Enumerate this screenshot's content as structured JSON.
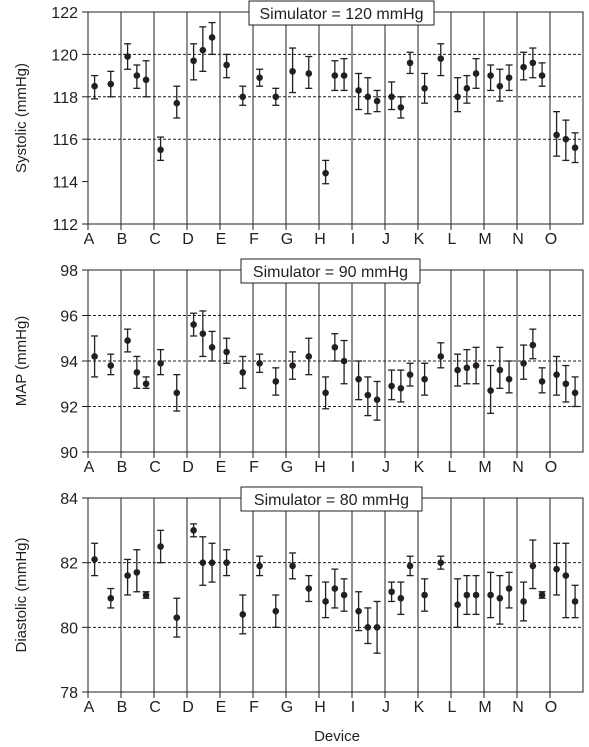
{
  "figure": {
    "xlabel": "Device",
    "devices": [
      "A",
      "B",
      "C",
      "D",
      "E",
      "F",
      "G",
      "H",
      "I",
      "J",
      "K",
      "L",
      "M",
      "N",
      "O"
    ],
    "colors": {
      "ink": "#231f20",
      "grid": "#231f20",
      "background": "#ffffff"
    }
  },
  "chart_data": [
    {
      "type": "scatter",
      "panel": "systolic",
      "title": "Simulator = 120 mmHg",
      "ylabel": "Systolic (mmHg)",
      "ylim": [
        112,
        122
      ],
      "yticks": [
        112,
        114,
        116,
        118,
        120,
        122
      ],
      "reference_lines": [
        116,
        118,
        120
      ],
      "grid": "dashed horizontal at reference values, vertical separators between devices",
      "points": [
        {
          "device": "A",
          "offset": 0.0,
          "mean": 118.5,
          "low": 117.9,
          "high": 119.0
        },
        {
          "device": "A",
          "offset": 0.35,
          "mean": 118.6,
          "low": 118.0,
          "high": 119.2
        },
        {
          "device": "B",
          "offset": 0.0,
          "mean": 119.9,
          "low": 119.3,
          "high": 120.5
        },
        {
          "device": "B",
          "offset": 0.2,
          "mean": 119.0,
          "low": 118.4,
          "high": 119.5
        },
        {
          "device": "B",
          "offset": 0.4,
          "mean": 118.8,
          "low": 118.0,
          "high": 119.7
        },
        {
          "device": "C",
          "offset": 0.0,
          "mean": 115.5,
          "low": 115.0,
          "high": 116.1
        },
        {
          "device": "C",
          "offset": 0.35,
          "mean": 117.7,
          "low": 117.0,
          "high": 118.5
        },
        {
          "device": "D",
          "offset": 0.0,
          "mean": 119.7,
          "low": 118.8,
          "high": 120.5
        },
        {
          "device": "D",
          "offset": 0.2,
          "mean": 120.2,
          "low": 119.2,
          "high": 121.3
        },
        {
          "device": "D",
          "offset": 0.4,
          "mean": 120.8,
          "low": 120.0,
          "high": 121.5
        },
        {
          "device": "E",
          "offset": 0.0,
          "mean": 119.5,
          "low": 118.9,
          "high": 120.0
        },
        {
          "device": "E",
          "offset": 0.35,
          "mean": 118.0,
          "low": 117.6,
          "high": 118.5
        },
        {
          "device": "F",
          "offset": 0.0,
          "mean": 118.9,
          "low": 118.5,
          "high": 119.3
        },
        {
          "device": "F",
          "offset": 0.35,
          "mean": 118.0,
          "low": 117.6,
          "high": 118.4
        },
        {
          "device": "G",
          "offset": 0.0,
          "mean": 119.2,
          "low": 118.2,
          "high": 120.3
        },
        {
          "device": "G",
          "offset": 0.35,
          "mean": 119.1,
          "low": 118.4,
          "high": 119.9
        },
        {
          "device": "H",
          "offset": 0.0,
          "mean": 114.4,
          "low": 113.9,
          "high": 115.0
        },
        {
          "device": "H",
          "offset": 0.2,
          "mean": 119.0,
          "low": 118.3,
          "high": 119.7
        },
        {
          "device": "H",
          "offset": 0.4,
          "mean": 119.0,
          "low": 118.3,
          "high": 119.8
        },
        {
          "device": "I",
          "offset": 0.0,
          "mean": 118.3,
          "low": 117.4,
          "high": 119.1
        },
        {
          "device": "I",
          "offset": 0.2,
          "mean": 118.0,
          "low": 117.2,
          "high": 118.9
        },
        {
          "device": "I",
          "offset": 0.4,
          "mean": 117.8,
          "low": 117.3,
          "high": 118.3
        },
        {
          "device": "J",
          "offset": 0.0,
          "mean": 118.0,
          "low": 117.4,
          "high": 118.7
        },
        {
          "device": "J",
          "offset": 0.2,
          "mean": 117.5,
          "low": 117.0,
          "high": 118.0
        },
        {
          "device": "J",
          "offset": 0.4,
          "mean": 119.6,
          "low": 119.1,
          "high": 120.1
        },
        {
          "device": "K",
          "offset": 0.0,
          "mean": 118.4,
          "low": 117.7,
          "high": 119.1
        },
        {
          "device": "K",
          "offset": 0.35,
          "mean": 119.8,
          "low": 119.0,
          "high": 120.5
        },
        {
          "device": "L",
          "offset": 0.0,
          "mean": 118.0,
          "low": 117.3,
          "high": 118.9
        },
        {
          "device": "L",
          "offset": 0.2,
          "mean": 118.4,
          "low": 117.7,
          "high": 119.0
        },
        {
          "device": "L",
          "offset": 0.4,
          "mean": 119.1,
          "low": 118.4,
          "high": 119.8
        },
        {
          "device": "M",
          "offset": 0.0,
          "mean": 119.0,
          "low": 118.3,
          "high": 119.5
        },
        {
          "device": "M",
          "offset": 0.2,
          "mean": 118.5,
          "low": 117.8,
          "high": 119.3
        },
        {
          "device": "M",
          "offset": 0.4,
          "mean": 118.9,
          "low": 118.3,
          "high": 119.5
        },
        {
          "device": "N",
          "offset": 0.0,
          "mean": 119.4,
          "low": 118.8,
          "high": 120.1
        },
        {
          "device": "N",
          "offset": 0.2,
          "mean": 119.6,
          "low": 118.9,
          "high": 120.3
        },
        {
          "device": "N",
          "offset": 0.4,
          "mean": 119.0,
          "low": 118.5,
          "high": 119.6
        },
        {
          "device": "O",
          "offset": 0.0,
          "mean": 116.2,
          "low": 115.2,
          "high": 117.3
        },
        {
          "device": "O",
          "offset": 0.2,
          "mean": 116.0,
          "low": 115.0,
          "high": 116.9
        },
        {
          "device": "O",
          "offset": 0.4,
          "mean": 115.6,
          "low": 114.9,
          "high": 116.3
        }
      ]
    },
    {
      "type": "scatter",
      "panel": "map",
      "title": "Simulator = 90 mmHg",
      "ylabel": "MAP (mmHg)",
      "ylim": [
        90,
        98
      ],
      "yticks": [
        90,
        92,
        94,
        96,
        98
      ],
      "reference_lines": [
        92,
        94,
        96
      ],
      "grid": "dashed horizontal at reference values, vertical separators between devices",
      "points": [
        {
          "device": "A",
          "offset": 0.0,
          "mean": 94.2,
          "low": 93.3,
          "high": 95.1
        },
        {
          "device": "A",
          "offset": 0.35,
          "mean": 93.8,
          "low": 93.4,
          "high": 94.3
        },
        {
          "device": "B",
          "offset": 0.0,
          "mean": 94.9,
          "low": 94.4,
          "high": 95.4
        },
        {
          "device": "B",
          "offset": 0.2,
          "mean": 93.5,
          "low": 92.8,
          "high": 94.2
        },
        {
          "device": "B",
          "offset": 0.4,
          "mean": 93.0,
          "low": 92.8,
          "high": 93.3
        },
        {
          "device": "C",
          "offset": 0.0,
          "mean": 93.9,
          "low": 93.4,
          "high": 94.5
        },
        {
          "device": "C",
          "offset": 0.35,
          "mean": 92.6,
          "low": 91.8,
          "high": 93.4
        },
        {
          "device": "D",
          "offset": 0.0,
          "mean": 95.6,
          "low": 95.1,
          "high": 96.1
        },
        {
          "device": "D",
          "offset": 0.2,
          "mean": 95.2,
          "low": 94.2,
          "high": 96.2
        },
        {
          "device": "D",
          "offset": 0.4,
          "mean": 94.6,
          "low": 94.0,
          "high": 95.3
        },
        {
          "device": "E",
          "offset": 0.0,
          "mean": 94.4,
          "low": 93.9,
          "high": 95.0
        },
        {
          "device": "E",
          "offset": 0.35,
          "mean": 93.5,
          "low": 92.8,
          "high": 94.2
        },
        {
          "device": "F",
          "offset": 0.0,
          "mean": 93.9,
          "low": 93.5,
          "high": 94.3
        },
        {
          "device": "F",
          "offset": 0.35,
          "mean": 93.1,
          "low": 92.5,
          "high": 93.7
        },
        {
          "device": "G",
          "offset": 0.0,
          "mean": 93.8,
          "low": 93.2,
          "high": 94.4
        },
        {
          "device": "G",
          "offset": 0.35,
          "mean": 94.2,
          "low": 93.4,
          "high": 95.0
        },
        {
          "device": "H",
          "offset": 0.0,
          "mean": 92.6,
          "low": 91.9,
          "high": 93.3
        },
        {
          "device": "H",
          "offset": 0.2,
          "mean": 94.6,
          "low": 94.0,
          "high": 95.2
        },
        {
          "device": "H",
          "offset": 0.4,
          "mean": 94.0,
          "low": 93.0,
          "high": 94.9
        },
        {
          "device": "I",
          "offset": 0.0,
          "mean": 93.2,
          "low": 92.3,
          "high": 94.0
        },
        {
          "device": "I",
          "offset": 0.2,
          "mean": 92.5,
          "low": 91.6,
          "high": 93.3
        },
        {
          "device": "I",
          "offset": 0.4,
          "mean": 92.3,
          "low": 91.4,
          "high": 93.1
        },
        {
          "device": "J",
          "offset": 0.0,
          "mean": 92.9,
          "low": 92.3,
          "high": 93.6
        },
        {
          "device": "J",
          "offset": 0.2,
          "mean": 92.8,
          "low": 92.2,
          "high": 93.6
        },
        {
          "device": "J",
          "offset": 0.4,
          "mean": 93.4,
          "low": 92.9,
          "high": 93.9
        },
        {
          "device": "K",
          "offset": 0.0,
          "mean": 93.2,
          "low": 92.5,
          "high": 93.9
        },
        {
          "device": "K",
          "offset": 0.35,
          "mean": 94.2,
          "low": 93.7,
          "high": 94.8
        },
        {
          "device": "L",
          "offset": 0.0,
          "mean": 93.6,
          "low": 92.9,
          "high": 94.3
        },
        {
          "device": "L",
          "offset": 0.2,
          "mean": 93.7,
          "low": 93.0,
          "high": 94.5
        },
        {
          "device": "L",
          "offset": 0.4,
          "mean": 93.8,
          "low": 93.0,
          "high": 94.6
        },
        {
          "device": "M",
          "offset": 0.0,
          "mean": 92.7,
          "low": 91.7,
          "high": 93.8
        },
        {
          "device": "M",
          "offset": 0.2,
          "mean": 93.6,
          "low": 92.8,
          "high": 94.6
        },
        {
          "device": "M",
          "offset": 0.4,
          "mean": 93.2,
          "low": 92.6,
          "high": 94.0
        },
        {
          "device": "N",
          "offset": 0.0,
          "mean": 93.9,
          "low": 93.2,
          "high": 94.7
        },
        {
          "device": "N",
          "offset": 0.2,
          "mean": 94.7,
          "low": 94.1,
          "high": 95.4
        },
        {
          "device": "N",
          "offset": 0.4,
          "mean": 93.1,
          "low": 92.6,
          "high": 93.7
        },
        {
          "device": "O",
          "offset": 0.0,
          "mean": 93.4,
          "low": 92.5,
          "high": 94.2
        },
        {
          "device": "O",
          "offset": 0.2,
          "mean": 93.0,
          "low": 92.2,
          "high": 93.8
        },
        {
          "device": "O",
          "offset": 0.4,
          "mean": 92.6,
          "low": 92.0,
          "high": 93.3
        }
      ]
    },
    {
      "type": "scatter",
      "panel": "diastolic",
      "title": "Simulator = 80 mmHg",
      "ylabel": "Diastolic (mmHg)",
      "ylim": [
        78,
        84
      ],
      "yticks": [
        78,
        80,
        82,
        84
      ],
      "reference_lines": [
        80,
        82
      ],
      "grid": "dashed horizontal at reference values, vertical separators between devices",
      "points": [
        {
          "device": "A",
          "offset": 0.0,
          "mean": 82.1,
          "low": 81.6,
          "high": 82.6
        },
        {
          "device": "A",
          "offset": 0.35,
          "mean": 80.9,
          "low": 80.6,
          "high": 81.2
        },
        {
          "device": "B",
          "offset": 0.0,
          "mean": 81.6,
          "low": 81.0,
          "high": 82.1
        },
        {
          "device": "B",
          "offset": 0.2,
          "mean": 81.7,
          "low": 81.1,
          "high": 82.4
        },
        {
          "device": "B",
          "offset": 0.4,
          "mean": 81.0,
          "low": 80.9,
          "high": 81.1
        },
        {
          "device": "C",
          "offset": 0.0,
          "mean": 82.5,
          "low": 82.0,
          "high": 83.0
        },
        {
          "device": "C",
          "offset": 0.35,
          "mean": 80.3,
          "low": 79.7,
          "high": 80.9
        },
        {
          "device": "D",
          "offset": 0.0,
          "mean": 83.0,
          "low": 82.8,
          "high": 83.2
        },
        {
          "device": "D",
          "offset": 0.2,
          "mean": 82.0,
          "low": 81.3,
          "high": 82.8
        },
        {
          "device": "D",
          "offset": 0.4,
          "mean": 82.0,
          "low": 81.4,
          "high": 82.6
        },
        {
          "device": "E",
          "offset": 0.0,
          "mean": 82.0,
          "low": 81.6,
          "high": 82.4
        },
        {
          "device": "E",
          "offset": 0.35,
          "mean": 80.4,
          "low": 79.8,
          "high": 81.0
        },
        {
          "device": "F",
          "offset": 0.0,
          "mean": 81.9,
          "low": 81.6,
          "high": 82.2
        },
        {
          "device": "F",
          "offset": 0.35,
          "mean": 80.5,
          "low": 80.0,
          "high": 81.0
        },
        {
          "device": "G",
          "offset": 0.0,
          "mean": 81.9,
          "low": 81.5,
          "high": 82.3
        },
        {
          "device": "G",
          "offset": 0.35,
          "mean": 81.2,
          "low": 80.8,
          "high": 81.6
        },
        {
          "device": "H",
          "offset": 0.0,
          "mean": 80.8,
          "low": 80.3,
          "high": 81.4
        },
        {
          "device": "H",
          "offset": 0.2,
          "mean": 81.2,
          "low": 80.6,
          "high": 81.8
        },
        {
          "device": "H",
          "offset": 0.4,
          "mean": 81.0,
          "low": 80.5,
          "high": 81.5
        },
        {
          "device": "I",
          "offset": 0.0,
          "mean": 80.5,
          "low": 79.9,
          "high": 81.1
        },
        {
          "device": "I",
          "offset": 0.2,
          "mean": 80.0,
          "low": 79.5,
          "high": 80.6
        },
        {
          "device": "I",
          "offset": 0.4,
          "mean": 80.0,
          "low": 79.2,
          "high": 80.8
        },
        {
          "device": "J",
          "offset": 0.0,
          "mean": 81.1,
          "low": 80.8,
          "high": 81.4
        },
        {
          "device": "J",
          "offset": 0.2,
          "mean": 80.9,
          "low": 80.4,
          "high": 81.4
        },
        {
          "device": "J",
          "offset": 0.4,
          "mean": 81.9,
          "low": 81.6,
          "high": 82.2
        },
        {
          "device": "K",
          "offset": 0.0,
          "mean": 81.0,
          "low": 80.5,
          "high": 81.5
        },
        {
          "device": "K",
          "offset": 0.35,
          "mean": 82.0,
          "low": 81.8,
          "high": 82.2
        },
        {
          "device": "L",
          "offset": 0.0,
          "mean": 80.7,
          "low": 80.0,
          "high": 81.5
        },
        {
          "device": "L",
          "offset": 0.2,
          "mean": 81.0,
          "low": 80.4,
          "high": 81.6
        },
        {
          "device": "L",
          "offset": 0.4,
          "mean": 81.0,
          "low": 80.4,
          "high": 81.6
        },
        {
          "device": "M",
          "offset": 0.0,
          "mean": 81.0,
          "low": 80.3,
          "high": 81.7
        },
        {
          "device": "M",
          "offset": 0.2,
          "mean": 80.9,
          "low": 80.1,
          "high": 81.6
        },
        {
          "device": "M",
          "offset": 0.4,
          "mean": 81.2,
          "low": 80.6,
          "high": 81.7
        },
        {
          "device": "N",
          "offset": 0.0,
          "mean": 80.8,
          "low": 80.2,
          "high": 81.4
        },
        {
          "device": "N",
          "offset": 0.2,
          "mean": 81.9,
          "low": 81.2,
          "high": 82.7
        },
        {
          "device": "N",
          "offset": 0.4,
          "mean": 81.0,
          "low": 80.9,
          "high": 81.1
        },
        {
          "device": "O",
          "offset": 0.0,
          "mean": 81.8,
          "low": 81.0,
          "high": 82.6
        },
        {
          "device": "O",
          "offset": 0.2,
          "mean": 81.6,
          "low": 80.3,
          "high": 82.6
        },
        {
          "device": "O",
          "offset": 0.4,
          "mean": 80.8,
          "low": 80.3,
          "high": 81.3
        }
      ]
    }
  ]
}
